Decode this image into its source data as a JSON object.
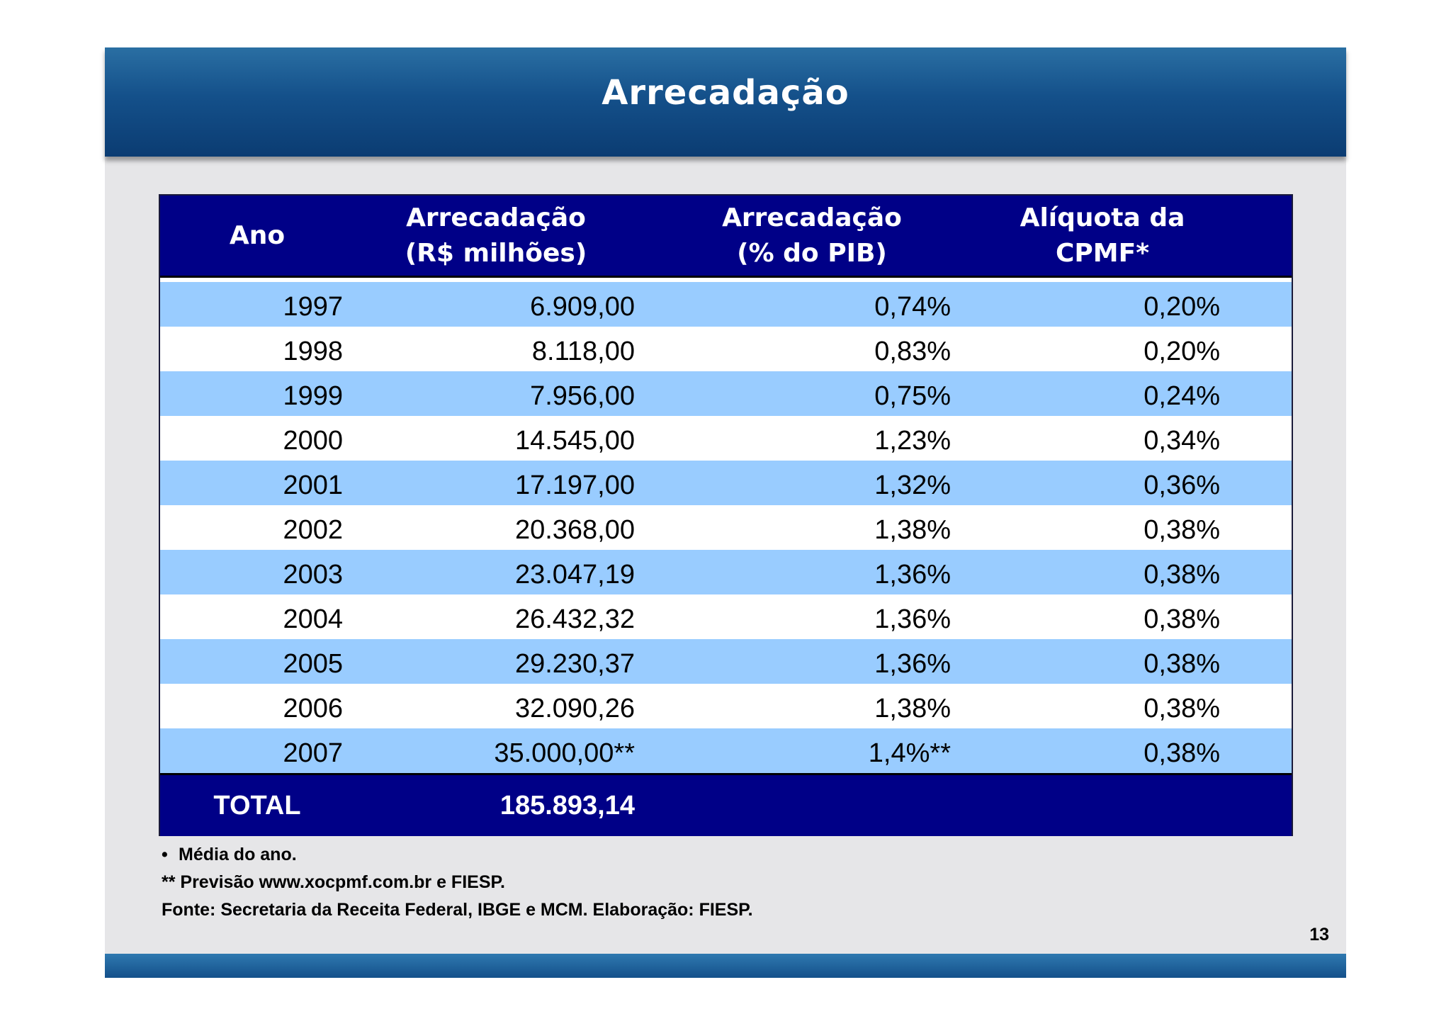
{
  "slide": {
    "title": "Arrecadação",
    "page_number": "13"
  },
  "table": {
    "headers": {
      "year": "Ano",
      "revenue": "Arrecadação\n(R$ milhões)",
      "pib": "Arrecadação\n(% do PIB)",
      "aliquota": "Alíquota da\nCPMF*"
    },
    "rows": [
      {
        "year": "1997",
        "revenue": "6.909,00",
        "pib": "0,74%",
        "aliquota": "0,20%"
      },
      {
        "year": "1998",
        "revenue": "8.118,00",
        "pib": "0,83%",
        "aliquota": "0,20%"
      },
      {
        "year": "1999",
        "revenue": "7.956,00",
        "pib": "0,75%",
        "aliquota": "0,24%"
      },
      {
        "year": "2000",
        "revenue": "14.545,00",
        "pib": "1,23%",
        "aliquota": "0,34%"
      },
      {
        "year": "2001",
        "revenue": "17.197,00",
        "pib": "1,32%",
        "aliquota": "0,36%"
      },
      {
        "year": "2002",
        "revenue": "20.368,00",
        "pib": "1,38%",
        "aliquota": "0,38%"
      },
      {
        "year": "2003",
        "revenue": "23.047,19",
        "pib": "1,36%",
        "aliquota": "0,38%"
      },
      {
        "year": "2004",
        "revenue": "26.432,32",
        "pib": "1,36%",
        "aliquota": "0,38%"
      },
      {
        "year": "2005",
        "revenue": "29.230,37",
        "pib": "1,36%",
        "aliquota": "0,38%"
      },
      {
        "year": "2006",
        "revenue": "32.090,26",
        "pib": "1,38%",
        "aliquota": "0,38%"
      },
      {
        "year": "2007",
        "revenue": "35.000,00**",
        "pib": "1,4%**",
        "aliquota": "0,38%"
      }
    ],
    "total": {
      "label": "TOTAL",
      "revenue": "185.893,14"
    }
  },
  "footnotes": {
    "bullet": "•",
    "note1": "Média do ano.",
    "note2": "** Previsão www.xocpmf.com.br e FIESP.",
    "source": "Fonte: Secretaria da Receita Federal, IBGE e MCM. Elaboração: FIESP."
  },
  "colors": {
    "header_bg": "#000087",
    "row_alt_bg": "#99ccff",
    "title_bar": "#14508a"
  }
}
